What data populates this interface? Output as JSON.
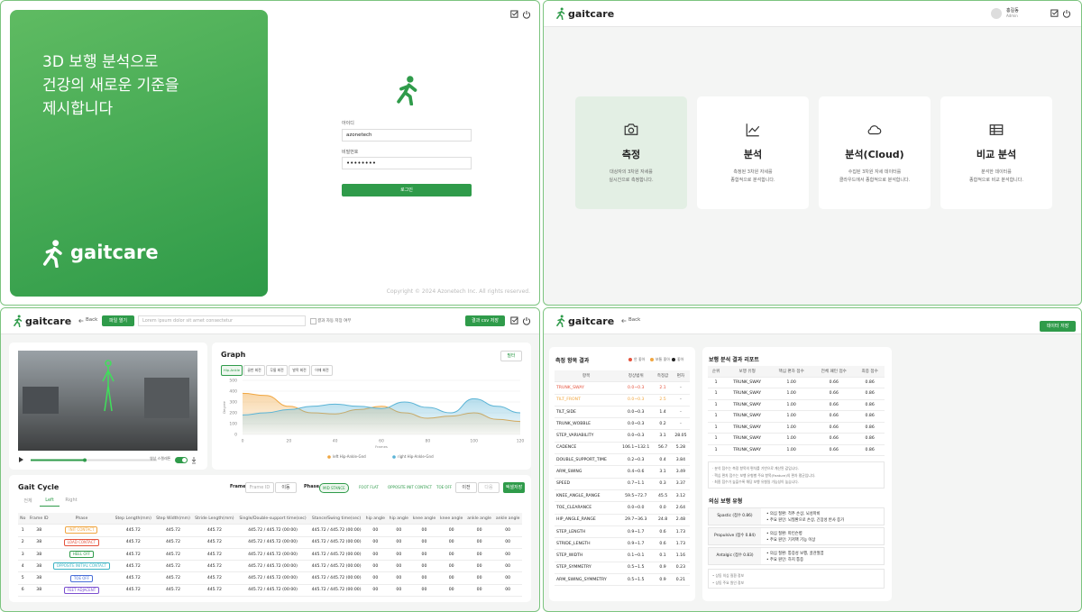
{
  "login": {
    "hero": [
      "3D 보행 분석으로",
      "건강의 새로운 기준을",
      "제시합니다"
    ],
    "brand": "gaitcare",
    "id_label": "아이디",
    "id_value": "azonetech",
    "pw_label": "비밀번호",
    "pw_value": "••••••••",
    "button": "로그인",
    "copyright": "Copyright © 2024 Azonetech Inc. All rights reserved."
  },
  "menu": {
    "brand": "gaitcare",
    "user_name": "홍길동",
    "user_role": "Admin",
    "cards": [
      {
        "title": "측정",
        "desc": [
          "대상자의 3차원 자세를",
          "실시간으로 측정합니다."
        ]
      },
      {
        "title": "분석",
        "desc": [
          "측정된 3차원 자세를",
          "종합적으로 분석합니다."
        ]
      },
      {
        "title": "분석(Cloud)",
        "desc": [
          "수집된 3차원 자세 데이터를",
          "클라우드에서 종합적으로 분석합니다."
        ]
      },
      {
        "title": "비교 분석",
        "desc": [
          "분석한 데이터를",
          "종합적으로 비교 분석합니다."
        ]
      }
    ]
  },
  "measure": {
    "brand": "gaitcare",
    "back": "Back",
    "open_file": "파일 열기",
    "search_placeholder": "Lorem ipsum dolor sit amet consectetur",
    "auto_save": "결과 자동 저장 여부",
    "save_csv": "결과 csv 저장",
    "video_toggle": "영상 스켈레톤",
    "graph": {
      "type": "line",
      "title": "Graph",
      "tabs": [
        "Hip-Ankle",
        "골반 회전",
        "무릎 회전",
        "발목 회전",
        "어깨 회전"
      ],
      "filter": "필터",
      "xlabel": "Frames",
      "ylabel": "Degree",
      "x": [
        0,
        10,
        20,
        30,
        40,
        50,
        60,
        70,
        80,
        90,
        100,
        110,
        120
      ],
      "series": [
        {
          "name": "left Hip-Ankle-Gnd",
          "color": "#f0a640",
          "values": [
            380,
            360,
            260,
            200,
            190,
            230,
            260,
            200,
            150,
            170,
            200,
            140,
            120
          ]
        },
        {
          "name": "right Hip-Ankle-Gnd",
          "color": "#5bb4d6",
          "values": [
            180,
            200,
            230,
            260,
            280,
            260,
            240,
            300,
            250,
            200,
            330,
            260,
            200
          ]
        }
      ],
      "xlim": [
        0,
        120
      ],
      "ylim": [
        0,
        500
      ],
      "xticks": [
        0,
        20,
        40,
        60,
        80,
        100,
        120
      ],
      "yticks": [
        0,
        100,
        200,
        300,
        400,
        500
      ]
    },
    "gait": {
      "title": "Gait Cycle",
      "tabs": [
        "전체",
        "Left",
        "Right"
      ],
      "frame_label": "Frame",
      "frame_placeholder": "Frame ID",
      "frame_button": "이동",
      "phase_label": "Phase",
      "phases": [
        "MID STANCE",
        "FOOT FLAT",
        "OPPOSITE INIT CONTACT",
        "TOE OFF"
      ],
      "prev": "이전",
      "next": "다음",
      "export": "엑셀저장",
      "columns": [
        "No",
        "Frame ID",
        "Phase",
        "Step Length(mm)",
        "Step Width(mm)",
        "Stride Length(mm)",
        "Single/Double-support time(sec)",
        "Stance/Swing time(sec)",
        "hip angle",
        "hip angle",
        "knee angle",
        "knee angle",
        "ankle angle",
        "ankle angle"
      ],
      "rows": [
        [
          "1",
          "38",
          "INIT CONTACT",
          "445.72",
          "445.72",
          "445.72",
          "445.72 / 445.72 (00:00)",
          "445.72 / 445.72 (00:00)",
          "00",
          "00",
          "00",
          "00",
          "00",
          "00"
        ],
        [
          "2",
          "38",
          "LOAD CONTACT",
          "445.72",
          "445.72",
          "445.72",
          "445.72 / 445.72 (00:00)",
          "445.72 / 445.72 (00:00)",
          "00",
          "00",
          "00",
          "00",
          "00",
          "00"
        ],
        [
          "3",
          "38",
          "HEEL OFF",
          "445.72",
          "445.72",
          "445.72",
          "445.72 / 445.72 (00:00)",
          "445.72 / 445.72 (00:00)",
          "00",
          "00",
          "00",
          "00",
          "00",
          "00"
        ],
        [
          "4",
          "38",
          "OPPOSITE INITIAL CONTACT",
          "445.72",
          "445.72",
          "445.72",
          "445.72 / 445.72 (00:00)",
          "445.72 / 445.72 (00:00)",
          "00",
          "00",
          "00",
          "00",
          "00",
          "00"
        ],
        [
          "5",
          "38",
          "TOE OFF",
          "445.72",
          "445.72",
          "445.72",
          "445.72 / 445.72 (00:00)",
          "445.72 / 445.72 (00:00)",
          "00",
          "00",
          "00",
          "00",
          "00",
          "00"
        ],
        [
          "6",
          "38",
          "FEET ADJACENT",
          "445.72",
          "445.72",
          "445.72",
          "445.72 / 445.72 (00:00)",
          "445.72 / 445.72 (00:00)",
          "00",
          "00",
          "00",
          "00",
          "00",
          "00"
        ]
      ]
    }
  },
  "report": {
    "brand": "gaitcare",
    "back": "Back",
    "save": "데이터 저장",
    "results": {
      "title": "측정 항목 결과",
      "legend": [
        {
          "label": "안 좋아",
          "color": "#e5533d"
        },
        {
          "label": "보통 좋아",
          "color": "#f0a640"
        },
        {
          "label": "좋아",
          "color": "#222222"
        }
      ],
      "columns": [
        "항목",
        "정상범위",
        "측정값",
        "편차"
      ],
      "rows": [
        {
          "cells": [
            "TRUNK_SWAY",
            "0.0~0.3",
            "2.1",
            "-"
          ],
          "color": "#e5533d"
        },
        {
          "cells": [
            "TILT_FRONT",
            "0.0~0.3",
            "2.5",
            "-"
          ],
          "color": "#f0a640"
        },
        {
          "cells": [
            "TILT_SIDE",
            "0.0~0.3",
            "1.4",
            "-"
          ]
        },
        {
          "cells": [
            "TRUNK_WOBBLE",
            "0.0~0.3",
            "0.2",
            "-"
          ]
        },
        {
          "cells": [
            "STEP_VARIABILITY",
            "0.0~0.3",
            "3.1",
            "28.05"
          ]
        },
        {
          "cells": [
            "CADENCE",
            "106.1~132.1",
            "56.7",
            "5.28"
          ]
        },
        {
          "cells": [
            "DOUBLE_SUPPORT_TIME",
            "0.2~0.3",
            "0.4",
            "3.84"
          ]
        },
        {
          "cells": [
            "ARM_SWING",
            "0.4~0.6",
            "3.1",
            "3.49"
          ]
        },
        {
          "cells": [
            "SPEED",
            "0.7~1.1",
            "0.3",
            "3.37"
          ]
        },
        {
          "cells": [
            "KNEE_ANGLE_RANGE",
            "59.5~72.7",
            "45.5",
            "3.12"
          ]
        },
        {
          "cells": [
            "TOE_CLEARANCE",
            "0.0~0.0",
            "0.0",
            "2.64"
          ]
        },
        {
          "cells": [
            "HIP_ANGLE_RANGE",
            "29.7~36.3",
            "24.8",
            "2.48"
          ]
        },
        {
          "cells": [
            "STEP_LENGTH",
            "0.9~1.7",
            "0.6",
            "1.73"
          ]
        },
        {
          "cells": [
            "STRIDE_LENGTH",
            "0.9~1.7",
            "0.6",
            "1.73"
          ]
        },
        {
          "cells": [
            "STEP_WIDTH",
            "0.1~0.1",
            "0.1",
            "1.16"
          ]
        },
        {
          "cells": [
            "STEP_SYMMETRY",
            "0.5~1.5",
            "0.9",
            "0.23"
          ]
        },
        {
          "cells": [
            "ARM_SWING_SYMMETRY",
            "0.5~1.5",
            "0.9",
            "0.21"
          ]
        }
      ]
    },
    "analysis": {
      "title": "보행 분석 결과 리포트",
      "columns": [
        "순위",
        "보행 유형",
        "핵심 편차 점수",
        "전체 패턴 점수",
        "최종 점수"
      ],
      "rows": [
        [
          "1",
          "TRUNK_SWAY",
          "1.00",
          "0.66",
          "0.86"
        ],
        [
          "1",
          "TRUNK_SWAY",
          "1.00",
          "0.66",
          "0.86"
        ],
        [
          "1",
          "TRUNK_SWAY",
          "1.00",
          "0.66",
          "0.86"
        ],
        [
          "1",
          "TRUNK_SWAY",
          "1.00",
          "0.66",
          "0.86"
        ],
        [
          "1",
          "TRUNK_SWAY",
          "1.00",
          "0.66",
          "0.86"
        ],
        [
          "1",
          "TRUNK_SWAY",
          "1.00",
          "0.66",
          "0.86"
        ],
        [
          "1",
          "TRUNK_SWAY",
          "1.00",
          "0.66",
          "0.86"
        ]
      ],
      "notes": [
        "· 분석 점수는 측정 항목의 편차를 기반으로 계산된 값입니다.",
        "· 핵심 편차 점수는 보행 유형별 주요 항목(Feature)의 편차 평균입니다.",
        "· 최종 점수가 높을수록 해당 보행 유형일 가능성이 높습니다."
      ],
      "suspect_title": "의심 보행 유형",
      "suspects": [
        {
          "name": "Spastic (점수 0.86)",
          "items": [
            "• 의심 질환: 척추 손상, 뇌성마비",
            "• 주요 원인: 뇌질환으로 손상, 긴장성 반사 증가"
          ]
        },
        {
          "name": "Propulsive (점수 0.84)",
          "items": [
            "• 의심 질환: 파킨슨병",
            "• 주요 원인: 기저핵 기능 이상"
          ]
        },
        {
          "name": "Antalgic (점수 0.83)",
          "items": [
            "• 의심 질환: 통증성 보행, 골관절염",
            "• 주요 원인: 하지 통증"
          ]
        }
      ],
      "footnotes": [
        "• 상동 의심 질환 정보",
        "• 상동 주요 원인 정보"
      ]
    }
  }
}
